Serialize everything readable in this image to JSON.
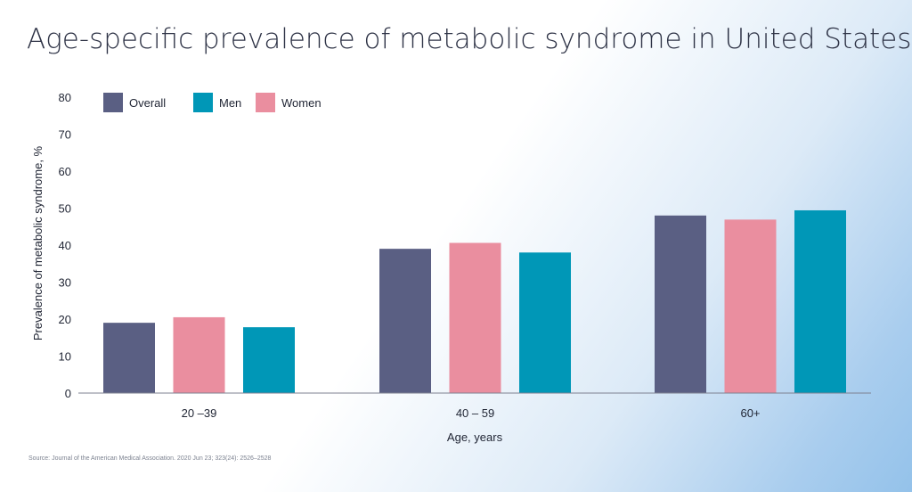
{
  "chart_data": {
    "type": "bar",
    "title": "Age-specific prevalence of metabolic syndrome in United States",
    "xlabel": "Age, years",
    "ylabel": "Prevalence of metabolic syndrome, %",
    "categories": [
      "20 –39",
      "40 – 59",
      "60+"
    ],
    "ylim": [
      0,
      80
    ],
    "yticks": [
      0,
      10,
      20,
      30,
      40,
      50,
      60,
      70,
      80
    ],
    "grid": false,
    "legend_position": "top-left",
    "legend": [
      {
        "name": "Overall",
        "color": "#5a5f83"
      },
      {
        "name": "Men",
        "color": "#0097b7"
      },
      {
        "name": "Women",
        "color": "#ea8e9f"
      }
    ],
    "bar_order": [
      [
        "Overall",
        "Women",
        "Men"
      ],
      [
        "Overall",
        "Women",
        "Men"
      ],
      [
        "Overall",
        "Women",
        "Men"
      ]
    ],
    "series": [
      {
        "name": "Overall",
        "color": "#5a5f83",
        "values": [
          19,
          39,
          48
        ]
      },
      {
        "name": "Women",
        "color": "#ea8e9f",
        "values": [
          20.5,
          40.6,
          46.9
        ]
      },
      {
        "name": "Men",
        "color": "#0097b7",
        "values": [
          17.8,
          38,
          49.4
        ]
      }
    ],
    "source": "Source: Journal of the American Medical Association. 2020 Jun 23; 323(24): 2526–2528"
  },
  "colors": {
    "axis": "#7d8090",
    "text": "#1f2433"
  }
}
